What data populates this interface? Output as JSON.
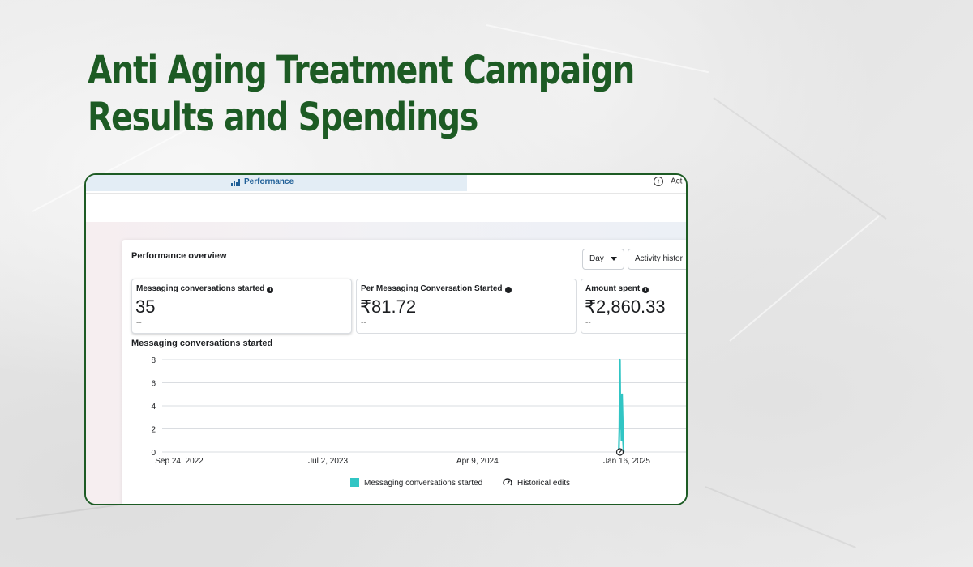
{
  "headline": {
    "line1": "Anti Aging Treatment Campaign",
    "line2": "Results and Spendings"
  },
  "topbar": {
    "tab_label": "Performance",
    "right_label": "Act"
  },
  "overview": {
    "title": "Performance overview",
    "day_label": "Day",
    "activity_label": "Activity histor"
  },
  "metrics": [
    {
      "label": "Messaging conversations started",
      "value": "35",
      "comparison": "--"
    },
    {
      "label": "Per Messaging Conversation Started",
      "value": "₹81.72",
      "comparison": "--"
    },
    {
      "label": "Amount spent",
      "value": "₹2,860.33",
      "comparison": "--"
    }
  ],
  "colors": {
    "headline": "#1d5b24",
    "series": "#31c5c4",
    "tab_bg": "#e3edf5",
    "tab_text": "#1f5f97"
  },
  "chart_data": {
    "type": "line",
    "title": "Messaging conversations started",
    "xlabel": "",
    "ylabel": "",
    "x_ticks": [
      "Sep 24, 2022",
      "Jul 2, 2023",
      "Apr 9, 2024",
      "Jan 16, 2025"
    ],
    "ylim": [
      0,
      8
    ],
    "y_ticks": [
      0,
      2,
      4,
      6,
      8
    ],
    "grid": true,
    "legend_position": "bottom",
    "series": [
      {
        "name": "Messaging conversations started",
        "x": [
          "2025-01-01",
          "2025-01-02",
          "2025-01-03",
          "2025-01-04",
          "2025-01-05",
          "2025-01-06",
          "2025-01-07",
          "2025-01-08",
          "2025-01-09",
          "2025-01-10"
        ],
        "values": [
          0,
          2,
          8,
          2,
          4,
          1,
          5,
          3,
          1,
          0
        ]
      }
    ],
    "legend": [
      "Messaging conversations started",
      "Historical edits"
    ]
  }
}
